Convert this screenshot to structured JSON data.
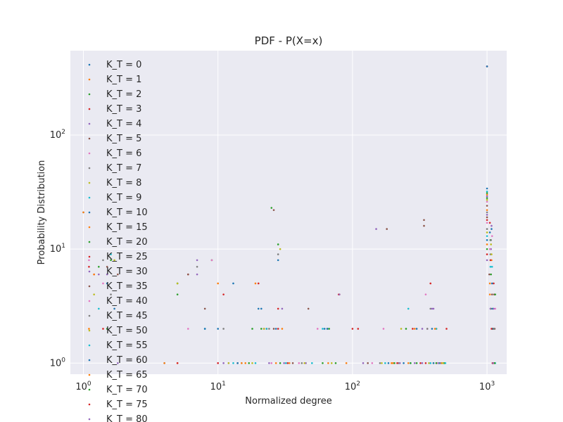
{
  "chart_data": {
    "type": "scatter",
    "title": "PDF - P(X=x)",
    "xlabel": "Normalized degree",
    "ylabel": "Probability Distribution",
    "xscale": "log",
    "yscale": "log",
    "xlim": [
      0.8,
      1400
    ],
    "ylim": [
      0.8,
      550
    ],
    "grid": true,
    "legend": "left, overflowing below plot area",
    "x_ticks": [
      {
        "value": 1,
        "label": "10^0",
        "base": "10",
        "exp": "0"
      },
      {
        "value": 10,
        "label": "10^1",
        "base": "10",
        "exp": "1"
      },
      {
        "value": 100,
        "label": "10^2",
        "base": "10",
        "exp": "2"
      },
      {
        "value": 1000,
        "label": "10^3",
        "base": "10",
        "exp": "3"
      }
    ],
    "y_ticks": [
      {
        "value": 1,
        "label": "10^0",
        "base": "10",
        "exp": "0"
      },
      {
        "value": 10,
        "label": "10^1",
        "base": "10",
        "exp": "1"
      },
      {
        "value": 100,
        "label": "10^2",
        "base": "10",
        "exp": "2"
      }
    ],
    "series": [
      {
        "name": "K_T = 0",
        "color": "#1f77b4",
        "points": [
          [
            1,
            21
          ],
          [
            4,
            1
          ],
          [
            10,
            2
          ],
          [
            13,
            5
          ],
          [
            28,
            8
          ],
          [
            240,
            1
          ],
          [
            300,
            2
          ],
          [
            1000,
            34
          ],
          [
            1050,
            14
          ],
          [
            1100,
            1
          ]
        ]
      },
      {
        "name": "K_T = 1",
        "color": "#ff7f0e",
        "points": [
          [
            1,
            21
          ],
          [
            5,
            1
          ],
          [
            10,
            5
          ],
          [
            16,
            1
          ],
          [
            30,
            2
          ],
          [
            80,
            4
          ],
          [
            200,
            1
          ],
          [
            420,
            2
          ],
          [
            1000,
            30
          ],
          [
            1080,
            8
          ]
        ]
      },
      {
        "name": "K_T = 2",
        "color": "#2ca02c",
        "points": [
          [
            1.6,
            8
          ],
          [
            5,
            5
          ],
          [
            9,
            8
          ],
          [
            18,
            2
          ],
          [
            28,
            11
          ],
          [
            60,
            1
          ],
          [
            250,
            2
          ],
          [
            1000,
            28
          ],
          [
            1060,
            12
          ],
          [
            1100,
            2
          ]
        ]
      },
      {
        "name": "K_T = 3",
        "color": "#d62728",
        "points": [
          [
            1.2,
            6
          ],
          [
            6,
            6
          ],
          [
            11,
            4
          ],
          [
            20,
            5
          ],
          [
            33,
            1
          ],
          [
            100,
            2
          ],
          [
            350,
            1
          ],
          [
            1000,
            400
          ],
          [
            1050,
            17
          ],
          [
            1120,
            5
          ]
        ]
      },
      {
        "name": "K_T = 4",
        "color": "#9467bd",
        "points": [
          [
            1.3,
            6
          ],
          [
            7,
            8
          ],
          [
            12,
            1
          ],
          [
            22,
            2
          ],
          [
            45,
            1
          ],
          [
            150,
            15
          ],
          [
            330,
            2
          ],
          [
            1000,
            29
          ],
          [
            1070,
            10
          ],
          [
            1110,
            1
          ]
        ]
      },
      {
        "name": "K_T = 5",
        "color": "#8c564b",
        "points": [
          [
            1.5,
            7
          ],
          [
            6,
            6
          ],
          [
            14,
            1
          ],
          [
            26,
            22
          ],
          [
            47,
            3
          ],
          [
            180,
            15
          ],
          [
            340,
            18
          ],
          [
            1000,
            24
          ],
          [
            1040,
            6
          ],
          [
            1130,
            4
          ]
        ]
      },
      {
        "name": "K_T = 6",
        "color": "#e377c2",
        "points": [
          [
            1.1,
            8
          ],
          [
            6,
            2
          ],
          [
            10,
            1
          ],
          [
            25,
            1
          ],
          [
            55,
            2
          ],
          [
            170,
            2
          ],
          [
            360,
            2
          ],
          [
            1000,
            26
          ],
          [
            1090,
            13
          ],
          [
            1150,
            3
          ]
        ]
      },
      {
        "name": "K_T = 7",
        "color": "#7f7f7f",
        "points": [
          [
            1.4,
            8
          ],
          [
            7,
            7
          ],
          [
            15,
            1
          ],
          [
            28,
            9
          ],
          [
            65,
            2
          ],
          [
            220,
            1
          ],
          [
            380,
            3
          ],
          [
            1000,
            21
          ],
          [
            1060,
            9
          ],
          [
            1100,
            2
          ]
        ]
      },
      {
        "name": "K_T = 8",
        "color": "#bcbd22",
        "points": [
          [
            1.7,
            8
          ],
          [
            5,
            5
          ],
          [
            18,
            1
          ],
          [
            29,
            10
          ],
          [
            70,
            1
          ],
          [
            230,
            2
          ],
          [
            400,
            1
          ],
          [
            1000,
            27
          ],
          [
            1070,
            11
          ],
          [
            1120,
            2
          ]
        ]
      },
      {
        "name": "K_T = 9",
        "color": "#17becf",
        "points": [
          [
            1.6,
            9
          ],
          [
            8,
            2
          ],
          [
            19,
            1
          ],
          [
            32,
            1
          ],
          [
            60,
            2
          ],
          [
            260,
            3
          ],
          [
            420,
            2
          ],
          [
            1000,
            32
          ],
          [
            1090,
            7
          ],
          [
            1140,
            1
          ]
        ]
      },
      {
        "name": "K_T = 10",
        "color": "#1f77b4",
        "points": [
          [
            1.5,
            5
          ],
          [
            8,
            2
          ],
          [
            20,
            3
          ],
          [
            27,
            2
          ],
          [
            65,
            2
          ],
          [
            270,
            1
          ],
          [
            440,
            1
          ],
          [
            1000,
            400
          ],
          [
            1080,
            15
          ],
          [
            1100,
            3
          ]
        ]
      },
      {
        "name": "K_T = 15",
        "color": "#ff7f0e",
        "points": [
          [
            1.2,
            6
          ],
          [
            4,
            1
          ],
          [
            19,
            5
          ],
          [
            34,
            1
          ],
          [
            90,
            1
          ],
          [
            290,
            2
          ],
          [
            460,
            1
          ],
          [
            1000,
            22
          ],
          [
            1050,
            5
          ],
          [
            1110,
            2
          ]
        ]
      },
      {
        "name": "K_T = 20",
        "color": "#2ca02c",
        "points": [
          [
            1.3,
            7
          ],
          [
            5,
            4
          ],
          [
            21,
            2
          ],
          [
            25,
            23
          ],
          [
            75,
            1
          ],
          [
            300,
            1
          ],
          [
            480,
            1
          ],
          [
            1000,
            31
          ],
          [
            1070,
            6
          ],
          [
            1150,
            4
          ]
        ]
      },
      {
        "name": "K_T = 25",
        "color": "#d62728",
        "points": [
          [
            1.1,
            7
          ],
          [
            5,
            1
          ],
          [
            23,
            2
          ],
          [
            28,
            2
          ],
          [
            110,
            2
          ],
          [
            320,
            1
          ],
          [
            500,
            2
          ],
          [
            1000,
            18
          ],
          [
            1060,
            8
          ],
          [
            1100,
            1
          ]
        ]
      },
      {
        "name": "K_T = 30",
        "color": "#9467bd",
        "points": [
          [
            1.5,
            6
          ],
          [
            7,
            6
          ],
          [
            24,
            1
          ],
          [
            30,
            3
          ],
          [
            120,
            1
          ],
          [
            330,
            1
          ],
          [
            390,
            3
          ],
          [
            1000,
            20
          ],
          [
            1080,
            16
          ],
          [
            1120,
            3
          ]
        ]
      },
      {
        "name": "K_T = 35",
        "color": "#8c564b",
        "points": [
          [
            1.8,
            6
          ],
          [
            8,
            3
          ],
          [
            26,
            2
          ],
          [
            36,
            1
          ],
          [
            130,
            1
          ],
          [
            340,
            16
          ],
          [
            420,
            1
          ],
          [
            1000,
            19
          ],
          [
            1090,
            4
          ],
          [
            1140,
            2
          ]
        ]
      },
      {
        "name": "K_T = 40",
        "color": "#e377c2",
        "points": [
          [
            1.4,
            5
          ],
          [
            9,
            8
          ],
          [
            22,
            2
          ],
          [
            40,
            1
          ],
          [
            140,
            1
          ],
          [
            350,
            4
          ],
          [
            430,
            1
          ],
          [
            1000,
            17
          ],
          [
            1050,
            10
          ],
          [
            1100,
            1
          ]
        ]
      },
      {
        "name": "K_T = 45",
        "color": "#7f7f7f",
        "points": [
          [
            1.6,
            4
          ],
          [
            11,
            2
          ],
          [
            24,
            2
          ],
          [
            42,
            1
          ],
          [
            160,
            1
          ],
          [
            360,
            2
          ],
          [
            450,
            1
          ],
          [
            1000,
            15
          ],
          [
            1070,
            12
          ],
          [
            1130,
            2
          ]
        ]
      },
      {
        "name": "K_T = 50",
        "color": "#bcbd22",
        "points": [
          [
            1.2,
            4
          ],
          [
            12,
            1
          ],
          [
            22,
            2
          ],
          [
            44,
            1
          ],
          [
            165,
            1
          ],
          [
            370,
            1
          ],
          [
            470,
            1
          ],
          [
            1000,
            14
          ],
          [
            1080,
            9
          ],
          [
            1110,
            1
          ]
        ]
      },
      {
        "name": "K_T = 55",
        "color": "#17becf",
        "points": [
          [
            1.3,
            3
          ],
          [
            13,
            1
          ],
          [
            23,
            2
          ],
          [
            50,
            1
          ],
          [
            175,
            1
          ],
          [
            380,
            1
          ],
          [
            490,
            1
          ],
          [
            1000,
            13
          ],
          [
            1060,
            7
          ],
          [
            1150,
            1
          ]
        ]
      },
      {
        "name": "K_T = 60",
        "color": "#1f77b4",
        "points": [
          [
            1.7,
            3
          ],
          [
            14,
            1
          ],
          [
            21,
            3
          ],
          [
            62,
            2
          ],
          [
            185,
            1
          ],
          [
            390,
            2
          ],
          [
            400,
            1
          ],
          [
            1000,
            12
          ],
          [
            1090,
            5
          ],
          [
            1100,
            2
          ]
        ]
      },
      {
        "name": "K_T = 65",
        "color": "#ff7f0e",
        "points": [
          [
            1.1,
            2
          ],
          [
            15,
            1
          ],
          [
            27,
            1
          ],
          [
            66,
            1
          ],
          [
            195,
            1
          ],
          [
            260,
            1
          ],
          [
            410,
            2
          ],
          [
            1000,
            11
          ],
          [
            1050,
            4
          ],
          [
            1120,
            1
          ]
        ]
      },
      {
        "name": "K_T = 70",
        "color": "#2ca02c",
        "points": [
          [
            1.5,
            2
          ],
          [
            17,
            1
          ],
          [
            29,
            1
          ],
          [
            67,
            2
          ],
          [
            205,
            1
          ],
          [
            270,
            1
          ],
          [
            420,
            1
          ],
          [
            1000,
            10
          ],
          [
            1070,
            3
          ],
          [
            1140,
            1
          ]
        ]
      },
      {
        "name": "K_T = 75",
        "color": "#d62728",
        "points": [
          [
            1.4,
            2
          ],
          [
            10,
            1
          ],
          [
            28,
            3
          ],
          [
            79,
            4
          ],
          [
            215,
            1
          ],
          [
            280,
            2
          ],
          [
            380,
            5
          ],
          [
            1000,
            9
          ],
          [
            1080,
            2
          ],
          [
            1100,
            1
          ]
        ]
      },
      {
        "name": "K_T = 80",
        "color": "#9467bd",
        "points": [
          [
            1.8,
            1
          ],
          [
            11,
            1
          ],
          [
            31,
            1
          ],
          [
            80,
            4
          ],
          [
            225,
            1
          ],
          [
            290,
            1
          ],
          [
            400,
            3
          ],
          [
            1000,
            8
          ],
          [
            1060,
            3
          ],
          [
            1110,
            1
          ]
        ]
      }
    ]
  }
}
